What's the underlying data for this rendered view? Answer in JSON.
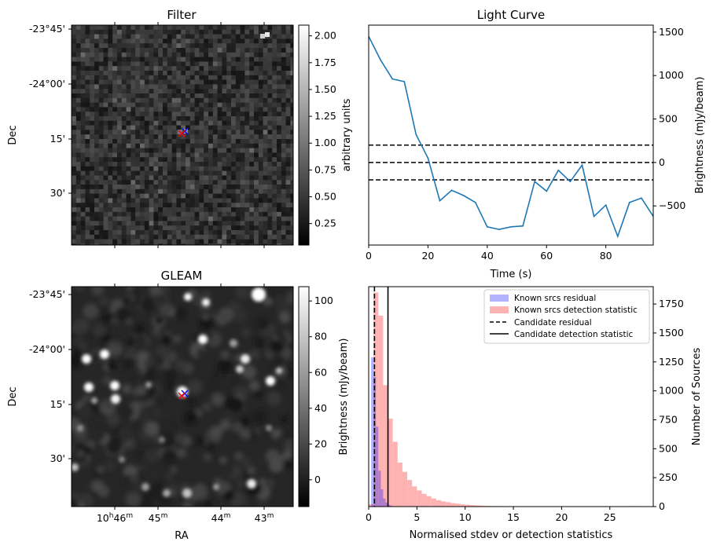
{
  "chart_data": [
    {
      "type": "heatmap",
      "title": "Filter",
      "ylabel": "Dec",
      "y_ticks": [
        "-23°45'",
        "-24°00'",
        "15'",
        "30'"
      ],
      "colorbar": {
        "label": "arbitrary units",
        "range": [
          0.05,
          2.1
        ],
        "ticks": [
          0.25,
          0.5,
          0.75,
          1.0,
          1.25,
          1.5,
          1.75,
          2.0
        ],
        "tick_labels": [
          "0.25",
          "0.50",
          "0.75",
          "1.00",
          "1.25",
          "1.50",
          "1.75",
          "2.00"
        ],
        "colormap": "gray"
      },
      "markers": [
        {
          "symbol": "x",
          "color": "#0000ff"
        },
        {
          "symbol": "x",
          "color": "#ff0000"
        }
      ]
    },
    {
      "type": "line",
      "title": "Light Curve",
      "xlabel": "Time (s)",
      "ylabel": "Brightness (mJy/beam)",
      "xlim": [
        0,
        96
      ],
      "ylim": [
        -950,
        1580
      ],
      "x_ticks": [
        0,
        20,
        40,
        60,
        80
      ],
      "y_ticks": [
        -500,
        0,
        500,
        1000,
        1500
      ],
      "y_axis_side": "right",
      "series": [
        {
          "color": "#1f77b4",
          "x": [
            0,
            4,
            8,
            12,
            16,
            20,
            24,
            28,
            32,
            36,
            40,
            44,
            48,
            52,
            56,
            60,
            64,
            68,
            72,
            76,
            80,
            84,
            88,
            92,
            96
          ],
          "y": [
            1450,
            1180,
            960,
            930,
            320,
            50,
            -440,
            -320,
            -380,
            -460,
            -740,
            -770,
            -740,
            -730,
            -220,
            -330,
            -90,
            -220,
            -30,
            -620,
            -490,
            -850,
            -460,
            -410,
            -620
          ]
        }
      ],
      "hlines": [
        {
          "y": 200,
          "style": "dashed",
          "color": "#000000"
        },
        {
          "y": 0,
          "style": "dashed",
          "color": "#000000"
        },
        {
          "y": -200,
          "style": "dashed",
          "color": "#000000"
        }
      ]
    },
    {
      "type": "heatmap",
      "title": "GLEAM",
      "xlabel": "RA",
      "ylabel": "Dec",
      "x_ticks": [
        "10h46m",
        "45m",
        "44m",
        "43m"
      ],
      "y_ticks": [
        "-23°45'",
        "-24°00'",
        "15'",
        "30'"
      ],
      "colorbar": {
        "label": "Brightness (mJy/beam)",
        "range": [
          -15,
          108
        ],
        "ticks": [
          0,
          20,
          40,
          60,
          80,
          100
        ],
        "tick_labels": [
          "0",
          "20",
          "40",
          "60",
          "80",
          "100"
        ],
        "colormap": "gray"
      },
      "markers": [
        {
          "symbol": "x",
          "color": "#0000ff"
        },
        {
          "symbol": "x",
          "color": "#ff0000"
        }
      ]
    },
    {
      "type": "bar",
      "subtype": "histogram",
      "xlabel": "Normalised stdev or detection statistics",
      "ylabel": "Number of Sources",
      "xlim": [
        0,
        29.5
      ],
      "ylim": [
        0,
        1900
      ],
      "x_ticks": [
        0,
        5,
        10,
        15,
        20,
        25
      ],
      "y_ticks": [
        0,
        250,
        500,
        750,
        1000,
        1250,
        1500,
        1750
      ],
      "y_axis_side": "right",
      "legend_position": "top-right",
      "series": [
        {
          "name": "Known srcs residual",
          "color": "#0000ff",
          "alpha": 0.3,
          "bin_edges": [
            0.0,
            0.25,
            0.5,
            0.75,
            1.0,
            1.25,
            1.5,
            1.75,
            2.0,
            2.25,
            2.5,
            2.75,
            3.0,
            3.25,
            3.5
          ],
          "counts": [
            0,
            1290,
            1120,
            690,
            310,
            150,
            70,
            35,
            15,
            8,
            4,
            2,
            1,
            0
          ]
        },
        {
          "name": "Known srcs detection statistic",
          "color": "#ff0000",
          "alpha": 0.3,
          "bin_edges": [
            0.0,
            0.5,
            1.0,
            1.5,
            2.0,
            2.5,
            3.0,
            3.5,
            4.0,
            4.5,
            5.0,
            5.5,
            6.0,
            6.5,
            7.0,
            7.5,
            8.0,
            8.5,
            9.0,
            9.5,
            10.0,
            10.5,
            11.0,
            11.5,
            12.0,
            12.5,
            13.0,
            14.0,
            15.0,
            16.0,
            17.0,
            18.0,
            20.0,
            22.0,
            24.0,
            26.0,
            27.0,
            28.0
          ],
          "counts": [
            20,
            1850,
            1650,
            1050,
            760,
            560,
            380,
            300,
            230,
            175,
            140,
            110,
            90,
            70,
            55,
            45,
            38,
            30,
            25,
            20,
            16,
            13,
            10,
            8,
            6,
            5,
            4,
            3,
            3,
            2,
            2,
            1,
            1,
            1,
            1,
            0,
            4
          ]
        }
      ],
      "vlines": [
        {
          "name": "Candidate residual",
          "x": 0.6,
          "style": "dashed",
          "color": "#000000"
        },
        {
          "name": "Candidate detection statistic",
          "x": 2.0,
          "style": "solid",
          "color": "#000000"
        }
      ]
    }
  ]
}
